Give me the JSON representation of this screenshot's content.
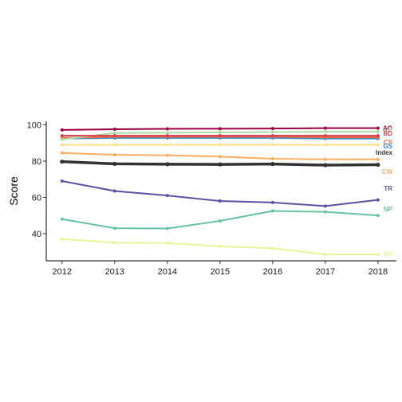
{
  "chart_data": {
    "type": "line",
    "title": "",
    "xlabel": "",
    "ylabel": "Score",
    "x": [
      2012,
      2013,
      2014,
      2015,
      2016,
      2017,
      2018
    ],
    "x_tick_labels": [
      "2012",
      "2013",
      "2014",
      "2015",
      "2016",
      "2017",
      "2018"
    ],
    "y_ticks": [
      40,
      60,
      80,
      100
    ],
    "y_tick_labels": [
      "40",
      "60",
      "80",
      "100"
    ],
    "xlim": [
      2011.7,
      2018.35
    ],
    "ylim": [
      25,
      102
    ],
    "grid": false,
    "legend": "none (direct labels at line ends)",
    "series": [
      {
        "name": "FP",
        "color": "#E6F598",
        "values": [
          37,
          35,
          34.8,
          33,
          32,
          28.5,
          28.5
        ]
      },
      {
        "name": "NP",
        "color": "#66C2A5",
        "values": [
          48,
          43,
          42.8,
          47,
          52.5,
          52,
          50
        ]
      },
      {
        "name": "TR",
        "color": "#5E4FA2",
        "values": [
          69,
          63.5,
          61,
          58,
          57.2,
          55.2,
          58.6
        ]
      },
      {
        "name": "CW",
        "color": "#FDAE61",
        "values": [
          84.5,
          83.5,
          83.2,
          82.5,
          81.3,
          81,
          81
        ]
      },
      {
        "name": "Index",
        "color": "#333333",
        "bold": true,
        "values": [
          79.7,
          78.5,
          78.3,
          78.2,
          78.4,
          77.8,
          78
        ]
      },
      {
        "name": "",
        "color": "#FEE08B",
        "values": [
          89,
          89,
          89,
          89,
          89,
          89,
          89
        ]
      },
      {
        "name": "GS",
        "color": "#3288BD",
        "values": [
          92.5,
          92.8,
          92.8,
          92.8,
          92.8,
          92.5,
          92.5
        ]
      },
      {
        "name": "CS",
        "color": "#F46D43",
        "values": [
          92.8,
          93.5,
          93.5,
          93.5,
          93.5,
          93.2,
          93.2
        ]
      },
      {
        "name": "LP",
        "color": "#ABDDA4",
        "values": [
          92,
          95.5,
          95.7,
          95.9,
          96,
          96.2,
          96.2
        ]
      },
      {
        "name": "BD",
        "color": "#D53E4F",
        "values": [
          94,
          94,
          94,
          94,
          94,
          94,
          94
        ]
      },
      {
        "name": "AO",
        "color": "#9E0142",
        "values": [
          97.2,
          97.6,
          97.8,
          97.9,
          98,
          98.2,
          98.2
        ]
      }
    ],
    "end_labels": [
      {
        "text": "AO",
        "color": "#9E0142",
        "y": 98.2
      },
      {
        "text": "LP",
        "color": "#ABDDA4",
        "y": 97.4
      },
      {
        "text": "BD",
        "color": "#D53E4F",
        "y": 95.4
      },
      {
        "text": "CS",
        "color": "#F46D43",
        "y": 90.5
      },
      {
        "text": "GS",
        "color": "#3288BD",
        "y": 88.3
      },
      {
        "text": "Index",
        "color": "#333333",
        "y": 84.8
      },
      {
        "text": "FP",
        "color": "#E6F598",
        "y": 28.5
      },
      {
        "text": "CW",
        "color": "#FDAE61",
        "y": 74.2
      },
      {
        "text": "TR",
        "color": "#5E4FA2",
        "y": 65
      },
      {
        "text": "NP",
        "color": "#66C2A5",
        "y": 53.6
      },
      {
        "text": "FP",
        "color": "#E6F598",
        "y": 28.5
      }
    ]
  }
}
